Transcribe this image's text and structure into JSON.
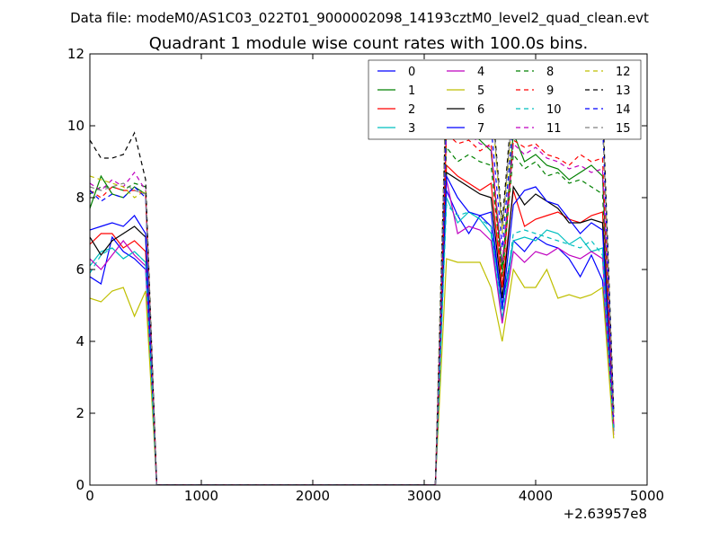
{
  "suptitle": "Data file: modeM0/AS1C03_022T01_9000002098_14193cztM0_level2_quad_clean.evt",
  "chart_data": {
    "type": "line",
    "title": "Quadrant 1 module wise count rates with 100.0s bins.",
    "xlabel": "",
    "ylabel": "",
    "xlim": [
      0,
      5000
    ],
    "ylim": [
      0,
      12
    ],
    "x_offset_label": "+2.63957e8",
    "xticks": [
      0,
      1000,
      2000,
      3000,
      4000,
      5000
    ],
    "xtick_labels": [
      "0",
      "1000",
      "2000",
      "3000",
      "4000",
      "5000"
    ],
    "yticks": [
      0,
      2,
      4,
      6,
      8,
      10,
      12
    ],
    "ytick_labels": [
      "0",
      "2",
      "4",
      "6",
      "8",
      "10",
      "12"
    ],
    "grid": false,
    "legend_position": "top-right",
    "segments": [
      {
        "x": [
          0,
          100,
          200,
          300,
          400,
          500,
          600
        ]
      },
      {
        "x": [
          600,
          3100
        ]
      },
      {
        "x": [
          3100,
          3200,
          3300,
          3400,
          3500,
          3600,
          3700,
          3800,
          3900,
          4000,
          4100,
          4200,
          4300,
          4400,
          4500,
          4600,
          4700
        ]
      }
    ],
    "series": [
      {
        "name": "0",
        "color": "#0000ff",
        "dash": "solid",
        "seg1": [
          5.8,
          5.6,
          6.9,
          6.5,
          6.3,
          6.0,
          0
        ],
        "seg3": [
          0,
          8.2,
          7.5,
          7.0,
          7.5,
          7.2,
          5.0,
          6.8,
          6.5,
          6.9,
          6.7,
          6.6,
          6.3,
          5.8,
          6.4,
          5.7,
          1.5
        ]
      },
      {
        "name": "1",
        "color": "#008000",
        "dash": "solid",
        "seg1": [
          7.7,
          8.6,
          8.1,
          8.0,
          8.3,
          8.1,
          0
        ],
        "seg3": [
          0,
          10.0,
          9.8,
          9.9,
          9.6,
          9.3,
          6.0,
          9.8,
          9.0,
          9.2,
          8.9,
          8.8,
          8.5,
          8.7,
          8.9,
          8.6,
          1.5
        ]
      },
      {
        "name": "2",
        "color": "#ff0000",
        "dash": "solid",
        "seg1": [
          6.7,
          7.0,
          7.0,
          6.6,
          6.8,
          6.5,
          0
        ],
        "seg3": [
          0,
          8.9,
          8.6,
          8.4,
          8.2,
          8.4,
          5.5,
          8.2,
          7.2,
          7.4,
          7.5,
          7.6,
          7.4,
          7.3,
          7.5,
          7.6,
          1.6
        ]
      },
      {
        "name": "3",
        "color": "#00bfbf",
        "dash": "solid",
        "seg1": [
          6.1,
          6.5,
          6.6,
          6.3,
          6.5,
          6.2,
          0
        ],
        "seg3": [
          0,
          8.0,
          7.3,
          7.6,
          7.4,
          7.0,
          4.6,
          6.8,
          6.9,
          6.8,
          7.1,
          7.0,
          6.7,
          6.9,
          6.5,
          6.6,
          1.5
        ]
      },
      {
        "name": "4",
        "color": "#bf00bf",
        "dash": "solid",
        "seg1": [
          6.3,
          6.0,
          6.4,
          6.8,
          6.4,
          6.1,
          0
        ],
        "seg3": [
          0,
          8.5,
          7.0,
          7.2,
          7.1,
          6.8,
          4.5,
          6.5,
          6.2,
          6.5,
          6.4,
          6.6,
          6.4,
          6.3,
          6.5,
          6.3,
          1.4
        ]
      },
      {
        "name": "5",
        "color": "#bfbf00",
        "dash": "solid",
        "seg1": [
          5.2,
          5.1,
          5.4,
          5.5,
          4.7,
          5.4,
          0
        ],
        "seg3": [
          0,
          6.3,
          6.2,
          6.2,
          6.2,
          5.5,
          4.0,
          6.0,
          5.5,
          5.5,
          6.0,
          5.2,
          5.3,
          5.2,
          5.3,
          5.5,
          1.3
        ]
      },
      {
        "name": "6",
        "color": "#000000",
        "dash": "solid",
        "seg1": [
          6.9,
          6.4,
          6.8,
          7.0,
          7.2,
          6.9,
          0
        ],
        "seg3": [
          0,
          8.7,
          8.5,
          8.3,
          8.1,
          8.0,
          5.2,
          8.3,
          7.8,
          8.1,
          7.9,
          7.7,
          7.3,
          7.3,
          7.4,
          7.3,
          1.6
        ]
      },
      {
        "name": "7",
        "color": "#0000ff",
        "dash": "solid",
        "seg1": [
          7.1,
          7.2,
          7.3,
          7.2,
          7.5,
          7.0,
          0
        ],
        "seg3": [
          0,
          8.6,
          8.0,
          7.6,
          7.5,
          7.6,
          4.9,
          7.8,
          8.2,
          8.3,
          7.9,
          7.8,
          7.4,
          7.0,
          7.3,
          7.1,
          1.6
        ]
      },
      {
        "name": "8",
        "color": "#008000",
        "dash": "dashed",
        "seg1": [
          8.1,
          8.3,
          8.3,
          8.2,
          8.4,
          8.3,
          0
        ],
        "seg3": [
          0,
          9.4,
          9.0,
          9.2,
          9.0,
          8.9,
          5.8,
          9.2,
          8.8,
          9.0,
          8.6,
          8.7,
          8.4,
          8.5,
          8.3,
          8.1,
          1.8
        ]
      },
      {
        "name": "9",
        "color": "#ff0000",
        "dash": "dashed",
        "seg1": [
          8.2,
          8.0,
          8.3,
          8.2,
          8.2,
          8.1,
          0
        ],
        "seg3": [
          0,
          9.8,
          9.5,
          9.6,
          9.3,
          9.5,
          5.5,
          9.6,
          9.4,
          9.5,
          9.2,
          9.1,
          8.9,
          9.2,
          9.0,
          9.1,
          1.7
        ]
      },
      {
        "name": "10",
        "color": "#00bfbf",
        "dash": "dashed",
        "seg1": [
          5.9,
          6.4,
          6.6,
          6.3,
          6.5,
          6.2,
          0
        ],
        "seg3": [
          0,
          7.8,
          7.5,
          7.6,
          7.4,
          7.2,
          4.7,
          7.0,
          7.1,
          7.0,
          6.9,
          6.8,
          6.7,
          6.6,
          6.8,
          6.4,
          1.5
        ]
      },
      {
        "name": "11",
        "color": "#bf00bf",
        "dash": "dashed",
        "seg1": [
          8.4,
          8.2,
          8.5,
          8.3,
          8.7,
          8.2,
          0
        ],
        "seg3": [
          0,
          10.0,
          9.6,
          9.8,
          9.5,
          9.4,
          6.2,
          9.5,
          9.2,
          9.4,
          9.1,
          9.0,
          8.8,
          8.9,
          8.7,
          8.8,
          1.7
        ]
      },
      {
        "name": "12",
        "color": "#bfbf00",
        "dash": "dashed",
        "seg1": [
          8.6,
          8.5,
          8.4,
          8.3,
          8.0,
          8.2,
          0
        ],
        "seg3": [
          0,
          11.5,
          11.0,
          10.9,
          11.2,
          10.8,
          7.0,
          10.5,
          10.2,
          10.4,
          10.6,
          10.1,
          10.3,
          10.5,
          10.2,
          10.4,
          2.0
        ]
      },
      {
        "name": "13",
        "color": "#000000",
        "dash": "dashed",
        "seg1": [
          9.6,
          9.1,
          9.1,
          9.2,
          9.8,
          8.5,
          0
        ],
        "seg3": [
          0,
          11.2,
          11.8,
          11.5,
          11.4,
          11.0,
          7.3,
          11.0,
          10.7,
          11.0,
          10.9,
          10.6,
          10.8,
          10.4,
          10.9,
          10.7,
          2.1
        ]
      },
      {
        "name": "14",
        "color": "#0000ff",
        "dash": "dashed",
        "seg1": [
          8.2,
          7.9,
          8.1,
          8.0,
          8.3,
          8.0,
          0
        ],
        "seg3": [
          0,
          10.5,
          10.2,
          10.4,
          10.1,
          10.0,
          6.6,
          10.2,
          9.8,
          10.4,
          10.0,
          9.7,
          10.3,
          10.6,
          9.8,
          10.1,
          1.9
        ]
      },
      {
        "name": "15",
        "color": "#808080",
        "dash": "dashed",
        "seg1": [
          8.3,
          8.2,
          8.3,
          8.4,
          8.2,
          8.1,
          0
        ],
        "seg3": [
          0,
          11.3,
          11.0,
          11.6,
          11.2,
          10.9,
          7.1,
          10.8,
          10.4,
          10.7,
          10.5,
          10.2,
          10.4,
          10.3,
          10.5,
          10.2,
          2.0
        ]
      }
    ]
  }
}
